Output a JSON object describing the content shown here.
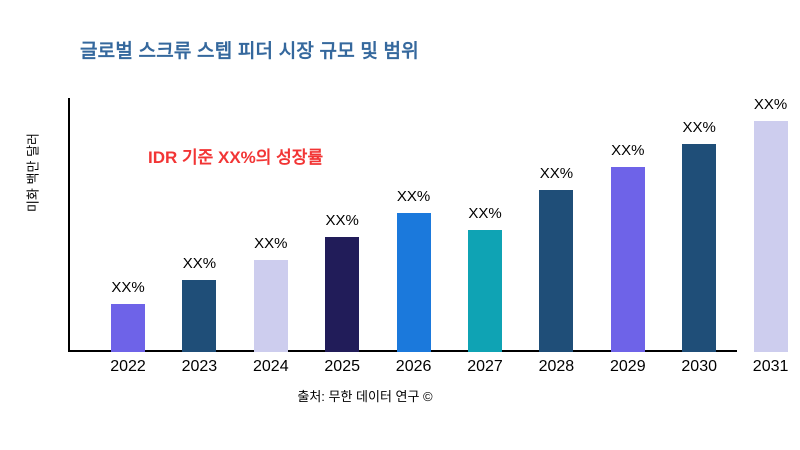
{
  "colors": {
    "title": "#35689D",
    "annotation": "#F23535",
    "axis": "#000000",
    "background": "#FFFFFF"
  },
  "chart_data": {
    "type": "bar",
    "title": "글로벌 스크류 스텝 피더 시장 규모 및 범위",
    "annotation": "IDR 기준 XX%의 성장률",
    "ylabel": "미화 백만 달러",
    "xlabel": "",
    "source": "출처: 무한 데이터 연구 ©",
    "categories": [
      "2022",
      "2023",
      "2024",
      "2025",
      "2026",
      "2027",
      "2028",
      "2029",
      "2030",
      "2031"
    ],
    "values": [
      2.1,
      3.1,
      4.0,
      5.0,
      6.0,
      5.3,
      7.0,
      8.0,
      9.0,
      10.0
    ],
    "value_labels": [
      "XX%",
      "XX%",
      "XX%",
      "XX%",
      "XX%",
      "XX%",
      "XX%",
      "XX%",
      "XX%",
      "XX%"
    ],
    "bar_colors": [
      "#6E63E8",
      "#1F4E78",
      "#CDCDEE",
      "#211C59",
      "#1B79DC",
      "#0FA3B4",
      "#1F4E78",
      "#6E63E8",
      "#1F4E78",
      "#CDCDEE"
    ],
    "ylim": [
      0,
      11
    ],
    "grid": false,
    "legend": null,
    "notes": "values are relative estimated heights; chart displays placeholder XX% labels"
  }
}
